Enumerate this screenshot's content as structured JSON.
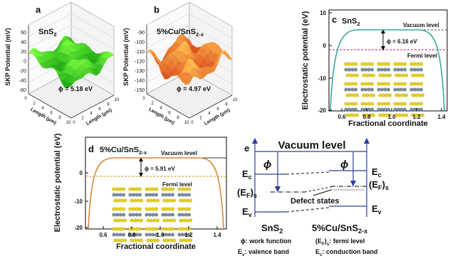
{
  "panels": {
    "a": {
      "label": "a",
      "sample": [
        "SnS",
        "2"
      ],
      "y_axis_title": "SKP Potential (mV)",
      "y_ticks": [
        "60",
        "40",
        "20",
        "0",
        "-20",
        "-40",
        "-60"
      ],
      "work_function": "ϕ = 5.18 eV",
      "x_axis_title": "Length (μm)",
      "length_ticks": [
        "0",
        "2",
        "4",
        "6",
        "8",
        "10"
      ]
    },
    "b": {
      "label": "b",
      "sample": [
        "5%Cu/SnS",
        "2-x"
      ],
      "y_axis_title": "SKP Potential (mV)",
      "y_ticks": [
        "-90",
        "-100",
        "-110",
        "-120",
        "-130",
        "-140",
        "-150"
      ],
      "work_function": "ϕ = 4.97 eV",
      "x_axis_title": "Length (μm)",
      "length_ticks": [
        "0",
        "2",
        "4",
        "6",
        "8",
        "10"
      ]
    },
    "c": {
      "label": "c",
      "sample": [
        "SnS",
        "2"
      ],
      "y_axis_title": "Electrostatic potential (eV)",
      "y_ticks": [
        "10",
        "0",
        "-10",
        "-20"
      ],
      "x_ticks": [
        "0.6",
        "0.8",
        "1.0",
        "1.2",
        "1.4"
      ],
      "x_axis_title": "Fractional coordinate",
      "vacuum": "Vacuum level",
      "fermi": "Fermi level",
      "work_function": "ϕ = 6.16 eV"
    },
    "d": {
      "label": "d",
      "sample": [
        "5%Cu/SnS",
        "2-x"
      ],
      "y_axis_title": "Electrostatic potential (eV)",
      "y_ticks": [
        "0",
        "-10",
        "-20"
      ],
      "x_ticks": [
        "0.6",
        "0.8",
        "1.0",
        "1.2",
        "1.4"
      ],
      "x_axis_title": "Fractional coordinate",
      "vacuum": "Vacuum level",
      "fermi": "Fermi level",
      "work_function": "ϕ = 5.91 eV"
    },
    "e": {
      "label": "e",
      "vacuum": "Vacuum level",
      "phi": "ϕ",
      "left_ec": [
        "E",
        "c"
      ],
      "left_ef": [
        "(E",
        "F",
        ")",
        "s"
      ],
      "left_ev": [
        "E",
        "v"
      ],
      "right_ec": [
        "E",
        "c"
      ],
      "right_ef": [
        "(E",
        "F",
        ")",
        "s"
      ],
      "right_ev": [
        "E",
        "v"
      ],
      "defect": "Defect states",
      "left_material": [
        "SnS",
        "2"
      ],
      "right_material": [
        "5%Cu/SnS",
        "2-x"
      ],
      "legend": [
        [
          "ϕ: work function"
        ],
        [
          "(E",
          "F",
          ")",
          "s",
          ": fermi level"
        ],
        [
          "E",
          "v",
          ": valence band"
        ],
        [
          "E",
          "c",
          ": conduction band"
        ]
      ]
    }
  }
}
